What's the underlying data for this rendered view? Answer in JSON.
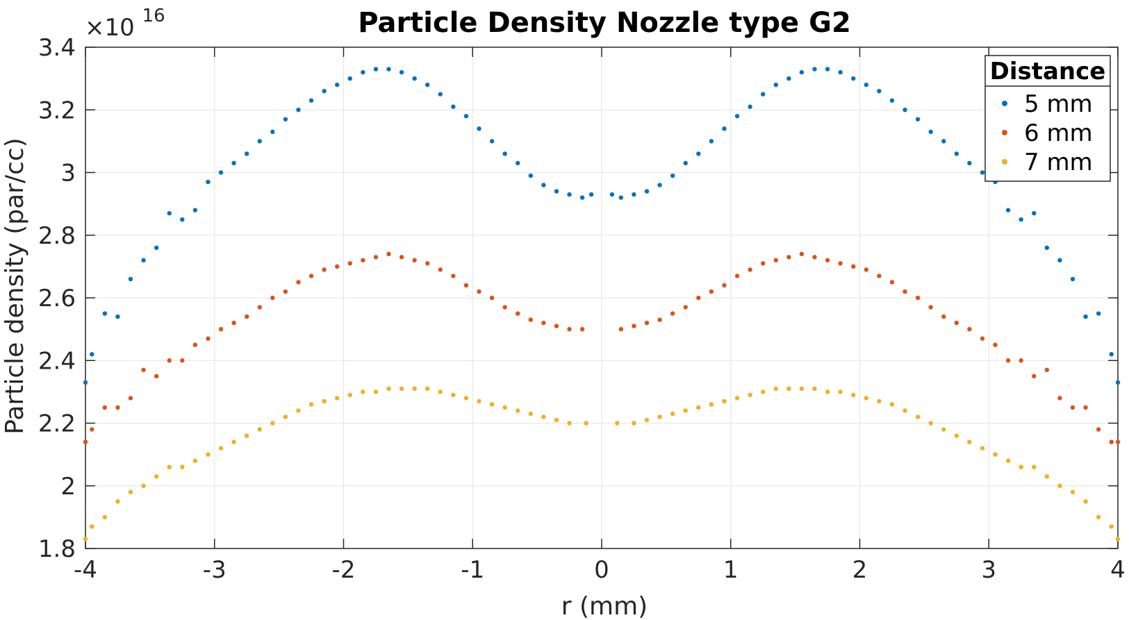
{
  "chart_data": {
    "type": "scatter",
    "title": "Particle Density Nozzle type G2",
    "xlabel": "r (mm)",
    "ylabel": "Particle density (par/cc)",
    "exponent_label": "×10",
    "exponent_power": "16",
    "xlim": [
      -4,
      4
    ],
    "ylim": [
      1.8,
      3.4
    ],
    "xticks": [
      -4,
      -3,
      -2,
      -1,
      0,
      1,
      2,
      3,
      4
    ],
    "xtick_labels": [
      "-4",
      "-3",
      "-2",
      "-1",
      "0",
      "1",
      "2",
      "3",
      "4"
    ],
    "yticks": [
      1.8,
      2.0,
      2.2,
      2.4,
      2.6,
      2.8,
      3.0,
      3.2,
      3.4
    ],
    "ytick_labels": [
      "1.8",
      "2",
      "2.2",
      "2.4",
      "2.6",
      "2.8",
      "3",
      "3.2",
      "3.4"
    ],
    "grid": true,
    "legend": {
      "title": "Distance",
      "location": "top-right"
    },
    "series": [
      {
        "name": "5 mm",
        "color": "#0072BD",
        "x": [
          -4.0,
          -3.95,
          -3.85,
          -3.75,
          -3.65,
          -3.55,
          -3.45,
          -3.35,
          -3.25,
          -3.15,
          -3.05,
          -2.95,
          -2.85,
          -2.75,
          -2.65,
          -2.55,
          -2.45,
          -2.35,
          -2.25,
          -2.15,
          -2.05,
          -1.95,
          -1.85,
          -1.75,
          -1.65,
          -1.55,
          -1.45,
          -1.35,
          -1.25,
          -1.15,
          -1.05,
          -0.95,
          -0.85,
          -0.75,
          -0.65,
          -0.55,
          -0.45,
          -0.35,
          -0.25,
          -0.15,
          -0.08,
          0.08,
          0.15,
          0.25,
          0.35,
          0.45,
          0.55,
          0.65,
          0.75,
          0.85,
          0.95,
          1.05,
          1.15,
          1.25,
          1.35,
          1.45,
          1.55,
          1.65,
          1.75,
          1.85,
          1.95,
          2.05,
          2.15,
          2.25,
          2.35,
          2.45,
          2.55,
          2.65,
          2.75,
          2.85,
          2.95,
          3.05,
          3.15,
          3.25,
          3.35,
          3.45,
          3.55,
          3.65,
          3.75,
          3.85,
          3.95,
          4.0
        ],
        "y": [
          2.33,
          2.42,
          2.55,
          2.54,
          2.66,
          2.72,
          2.76,
          2.87,
          2.85,
          2.88,
          2.97,
          3.0,
          3.03,
          3.06,
          3.1,
          3.13,
          3.17,
          3.2,
          3.23,
          3.26,
          3.28,
          3.3,
          3.32,
          3.33,
          3.33,
          3.32,
          3.3,
          3.28,
          3.25,
          3.21,
          3.18,
          3.14,
          3.1,
          3.06,
          3.03,
          2.99,
          2.96,
          2.94,
          2.93,
          2.92,
          2.93,
          2.93,
          2.92,
          2.93,
          2.94,
          2.96,
          2.99,
          3.03,
          3.06,
          3.1,
          3.14,
          3.18,
          3.21,
          3.25,
          3.28,
          3.3,
          3.32,
          3.33,
          3.33,
          3.32,
          3.3,
          3.28,
          3.26,
          3.23,
          3.2,
          3.17,
          3.13,
          3.1,
          3.06,
          3.03,
          3.0,
          2.97,
          2.88,
          2.85,
          2.87,
          2.76,
          2.72,
          2.66,
          2.54,
          2.55,
          2.42,
          2.33
        ]
      },
      {
        "name": "6 mm",
        "color": "#D95319",
        "x": [
          -4.0,
          -3.95,
          -3.85,
          -3.75,
          -3.65,
          -3.55,
          -3.45,
          -3.35,
          -3.25,
          -3.15,
          -3.05,
          -2.95,
          -2.85,
          -2.75,
          -2.65,
          -2.55,
          -2.45,
          -2.35,
          -2.25,
          -2.15,
          -2.05,
          -1.95,
          -1.85,
          -1.75,
          -1.65,
          -1.55,
          -1.45,
          -1.35,
          -1.25,
          -1.15,
          -1.05,
          -0.95,
          -0.85,
          -0.75,
          -0.65,
          -0.55,
          -0.45,
          -0.35,
          -0.25,
          -0.15,
          0.15,
          0.25,
          0.35,
          0.45,
          0.55,
          0.65,
          0.75,
          0.85,
          0.95,
          1.05,
          1.15,
          1.25,
          1.35,
          1.45,
          1.55,
          1.65,
          1.75,
          1.85,
          1.95,
          2.05,
          2.15,
          2.25,
          2.35,
          2.45,
          2.55,
          2.65,
          2.75,
          2.85,
          2.95,
          3.05,
          3.15,
          3.25,
          3.35,
          3.45,
          3.55,
          3.65,
          3.75,
          3.85,
          3.95,
          4.0
        ],
        "y": [
          2.14,
          2.18,
          2.25,
          2.25,
          2.28,
          2.37,
          2.35,
          2.4,
          2.4,
          2.45,
          2.47,
          2.5,
          2.52,
          2.54,
          2.57,
          2.6,
          2.62,
          2.65,
          2.67,
          2.69,
          2.7,
          2.71,
          2.72,
          2.73,
          2.74,
          2.73,
          2.72,
          2.71,
          2.69,
          2.67,
          2.64,
          2.62,
          2.6,
          2.57,
          2.55,
          2.53,
          2.52,
          2.51,
          2.5,
          2.5,
          2.5,
          2.51,
          2.52,
          2.53,
          2.55,
          2.57,
          2.6,
          2.62,
          2.64,
          2.67,
          2.69,
          2.71,
          2.72,
          2.73,
          2.74,
          2.73,
          2.72,
          2.71,
          2.7,
          2.69,
          2.67,
          2.65,
          2.62,
          2.6,
          2.57,
          2.54,
          2.52,
          2.5,
          2.47,
          2.45,
          2.4,
          2.4,
          2.35,
          2.37,
          2.28,
          2.25,
          2.25,
          2.18,
          2.14,
          2.14
        ]
      },
      {
        "name": "7 mm",
        "color": "#EDB120",
        "x": [
          -4.0,
          -3.95,
          -3.85,
          -3.75,
          -3.65,
          -3.55,
          -3.45,
          -3.35,
          -3.25,
          -3.15,
          -3.05,
          -2.95,
          -2.85,
          -2.75,
          -2.65,
          -2.55,
          -2.45,
          -2.35,
          -2.25,
          -2.15,
          -2.05,
          -1.95,
          -1.85,
          -1.75,
          -1.65,
          -1.55,
          -1.45,
          -1.35,
          -1.25,
          -1.15,
          -1.05,
          -0.95,
          -0.85,
          -0.75,
          -0.65,
          -0.55,
          -0.45,
          -0.35,
          -0.25,
          -0.12,
          0.12,
          0.25,
          0.35,
          0.45,
          0.55,
          0.65,
          0.75,
          0.85,
          0.95,
          1.05,
          1.15,
          1.25,
          1.35,
          1.45,
          1.55,
          1.65,
          1.75,
          1.85,
          1.95,
          2.05,
          2.15,
          2.25,
          2.35,
          2.45,
          2.55,
          2.65,
          2.75,
          2.85,
          2.95,
          3.05,
          3.15,
          3.25,
          3.35,
          3.45,
          3.55,
          3.65,
          3.75,
          3.85,
          3.95,
          4.0
        ],
        "y": [
          1.83,
          1.87,
          1.9,
          1.95,
          1.98,
          2.0,
          2.03,
          2.06,
          2.06,
          2.08,
          2.1,
          2.12,
          2.14,
          2.16,
          2.18,
          2.2,
          2.22,
          2.24,
          2.26,
          2.27,
          2.28,
          2.29,
          2.3,
          2.3,
          2.31,
          2.31,
          2.31,
          2.31,
          2.3,
          2.29,
          2.28,
          2.27,
          2.26,
          2.25,
          2.24,
          2.23,
          2.22,
          2.21,
          2.2,
          2.2,
          2.2,
          2.2,
          2.21,
          2.22,
          2.23,
          2.24,
          2.25,
          2.26,
          2.27,
          2.28,
          2.29,
          2.3,
          2.31,
          2.31,
          2.31,
          2.31,
          2.3,
          2.3,
          2.29,
          2.28,
          2.27,
          2.26,
          2.24,
          2.22,
          2.2,
          2.18,
          2.16,
          2.14,
          2.12,
          2.1,
          2.08,
          2.06,
          2.06,
          2.03,
          2.0,
          1.98,
          1.95,
          1.9,
          1.87,
          1.83
        ]
      }
    ]
  }
}
